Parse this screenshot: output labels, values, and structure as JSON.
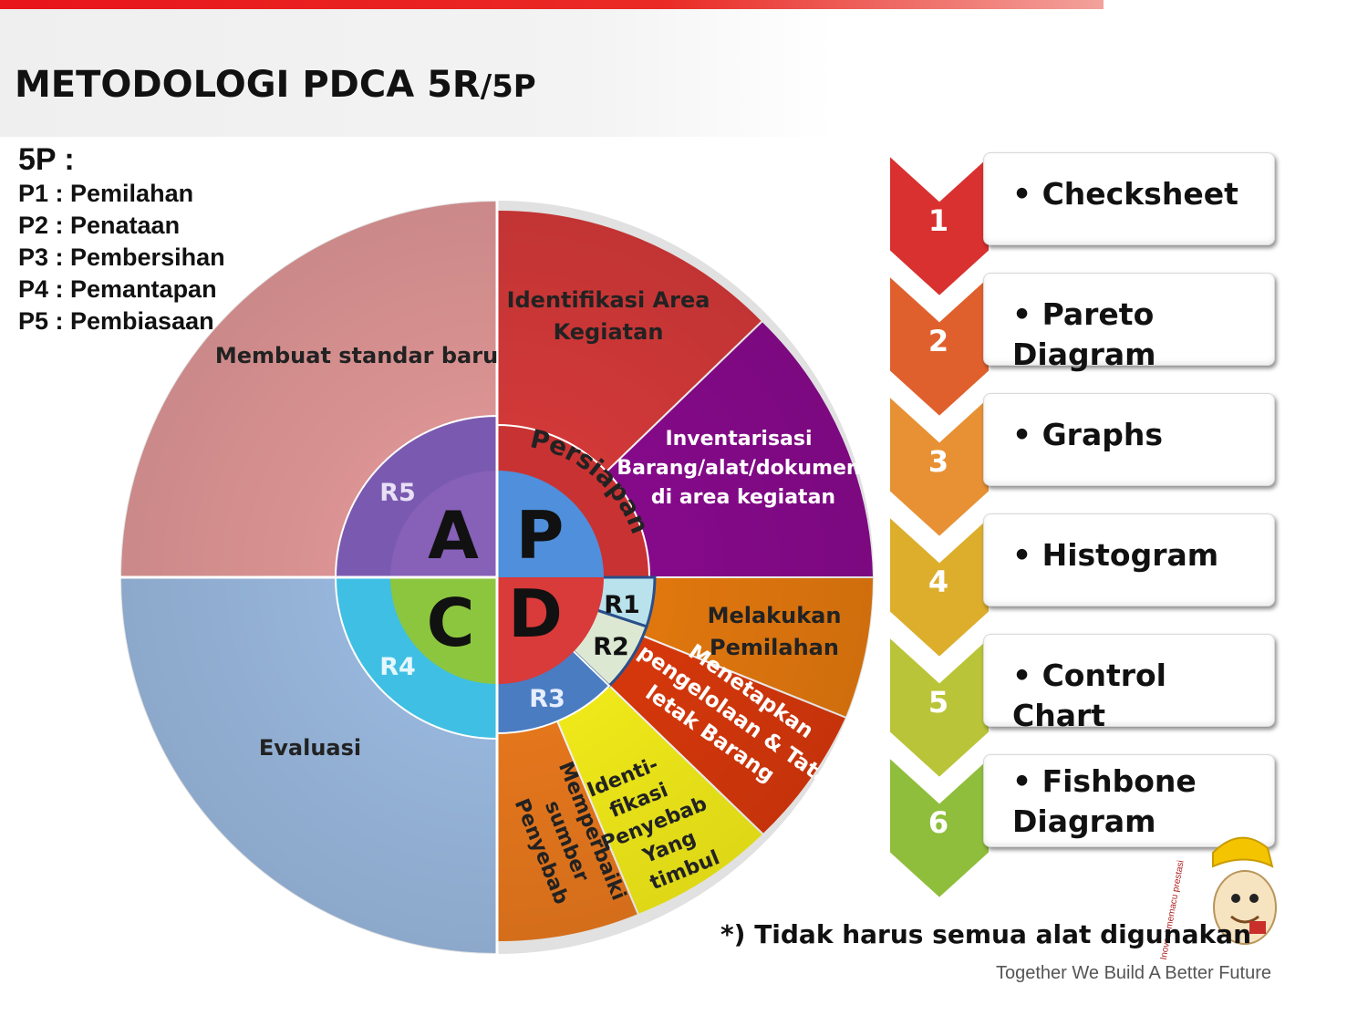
{
  "title": {
    "main": "METODOLOGI PDCA 5R",
    "suffix": "/5P"
  },
  "legend": {
    "heading": "5P :",
    "items": [
      "P1 : Pemilahan",
      "P2 : Penataan",
      "P3 : Pembersihan",
      "P4 : Pemantapan",
      "P5 : Pembiasaan"
    ]
  },
  "wheel": {
    "outer": {
      "act": "Membuat standar baru",
      "check": "Evaluasi",
      "plan_1": [
        "Identifikasi Area",
        "Kegiatan"
      ],
      "plan_2": [
        "Inventarisasi",
        "Barang/alat/dokumen",
        "di area kegiatan"
      ],
      "do_1": [
        "Melakukan",
        "Pemilahan"
      ],
      "do_2": [
        "Menetapkan",
        "pengelolaan  & Tata",
        "letak  Barang"
      ],
      "do_3": [
        "Identi-",
        "fikasi",
        "Penyebab",
        "Yang",
        "timbul"
      ],
      "do_4": [
        "Memperbaiki",
        "sumber",
        "Penyebab"
      ]
    },
    "ring": {
      "persiapan": "Persiapan",
      "r1": "R1",
      "r2": "R2",
      "r3": "R3",
      "r4": "R4",
      "r5": "R5"
    },
    "core": {
      "p": "P",
      "d": "D",
      "c": "C",
      "a": "A"
    },
    "colors": {
      "act_outer": "#e79b9b",
      "check_outer": "#9fbfe6",
      "plan_red": "#dc3b3b",
      "plan_purple": "#8c0a91",
      "do_orange": "#ec7d0f",
      "do_red": "#e03a0c",
      "do_yellow": "#fbf41a",
      "do_orange2": "#f07c1e",
      "ring_purple": "#7a5ab0",
      "ring_cyan": "#3fbfe3",
      "ring_blue": "#4a7cc2",
      "ring_red": "#c93232",
      "core_blue": "#4f8fdb",
      "core_green": "#8cc63f",
      "core_red": "#d93a3a",
      "core_purple": "#8760b8"
    }
  },
  "tools": [
    {
      "number": "1",
      "label": "• Checksheet",
      "color": "#d8312f"
    },
    {
      "number": "2",
      "label": "• Pareto Diagram",
      "color": "#e0602d"
    },
    {
      "number": "3",
      "label": "• Graphs",
      "color": "#e79134"
    },
    {
      "number": "4",
      "label": "• Histogram",
      "color": "#dcae2c"
    },
    {
      "number": "5",
      "label": "• Control Chart",
      "color": "#b9c438"
    },
    {
      "number": "6",
      "label": "• Fishbone Diagram",
      "color": "#8fbe3c"
    }
  ],
  "note": "*) Tidak harus semua alat digunakan",
  "tagline": "Together We Build A Better Future",
  "mascot_text": "Inovasi memacu prestasi"
}
